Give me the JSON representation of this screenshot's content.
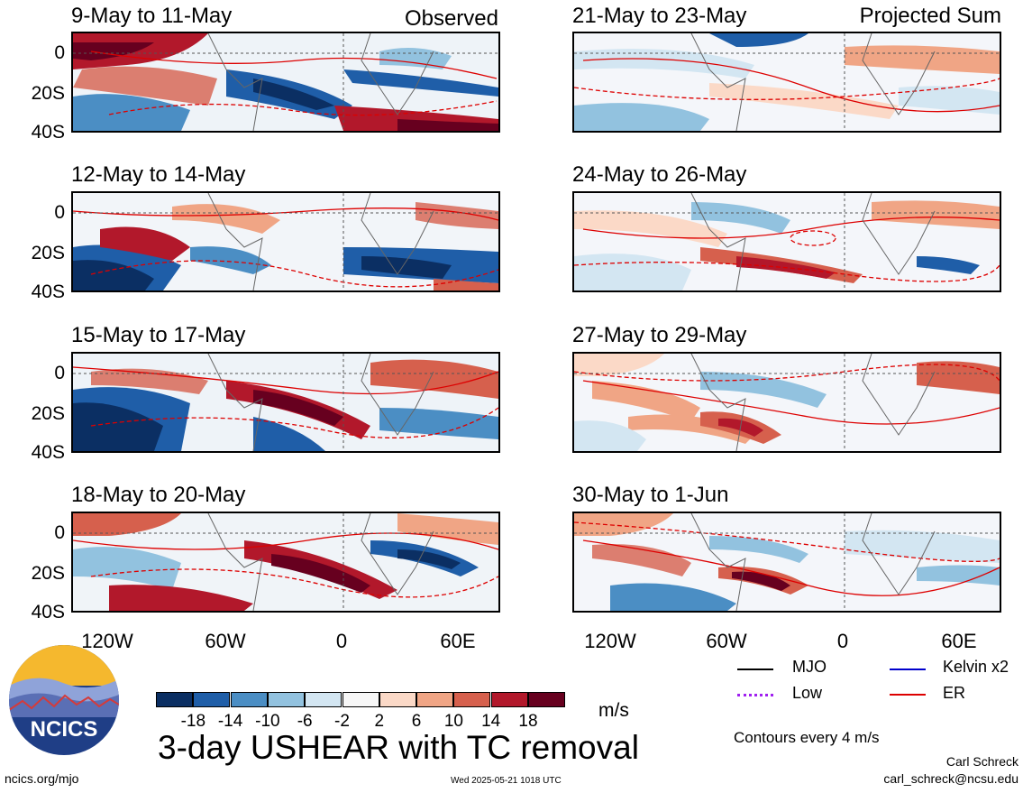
{
  "panels_left": [
    {
      "title": "9-May to 11-May",
      "label": "Observed"
    },
    {
      "title": "12-May to 14-May",
      "label": ""
    },
    {
      "title": "15-May to 17-May",
      "label": ""
    },
    {
      "title": "18-May to 20-May",
      "label": ""
    }
  ],
  "panels_right": [
    {
      "title": "21-May to 23-May",
      "label": "Projected Sum"
    },
    {
      "title": "24-May to 26-May",
      "label": ""
    },
    {
      "title": "27-May to 29-May",
      "label": ""
    },
    {
      "title": "30-May to 1-Jun",
      "label": ""
    }
  ],
  "y_ticks": [
    "0",
    "20S",
    "40S"
  ],
  "x_ticks": [
    "120W",
    "60W",
    "0",
    "60E"
  ],
  "colorbar": {
    "colors": [
      "#0b2f63",
      "#1f5ea8",
      "#4b8ec4",
      "#92c2df",
      "#d3e6f2",
      "#f7f7f7",
      "#fbd9c7",
      "#f0a585",
      "#d6604d",
      "#b2182b",
      "#67001f"
    ],
    "ticks": [
      "-18",
      "-14",
      "-10",
      "-6",
      "-2",
      "2",
      "6",
      "10",
      "14",
      "18"
    ],
    "unit": "m/s"
  },
  "legend": {
    "mjo": {
      "label": "MJO",
      "color": "#000000"
    },
    "kelvin": {
      "label": "Kelvin x2",
      "color": "#0000cc"
    },
    "low": {
      "label": "Low",
      "color": "#a020f0"
    },
    "er": {
      "label": "ER",
      "color": "#dd0000"
    },
    "contours": "Contours every 4 m/s"
  },
  "main_title": "3-day USHEAR with TC removal",
  "logo_text": "NCICS",
  "footer": {
    "site": "ncics.org/mjo",
    "timestamp": "Wed 2025-05-21 1018 UTC",
    "author": "Carl Schreck",
    "email": "carl_schreck@ncsu.edu"
  }
}
